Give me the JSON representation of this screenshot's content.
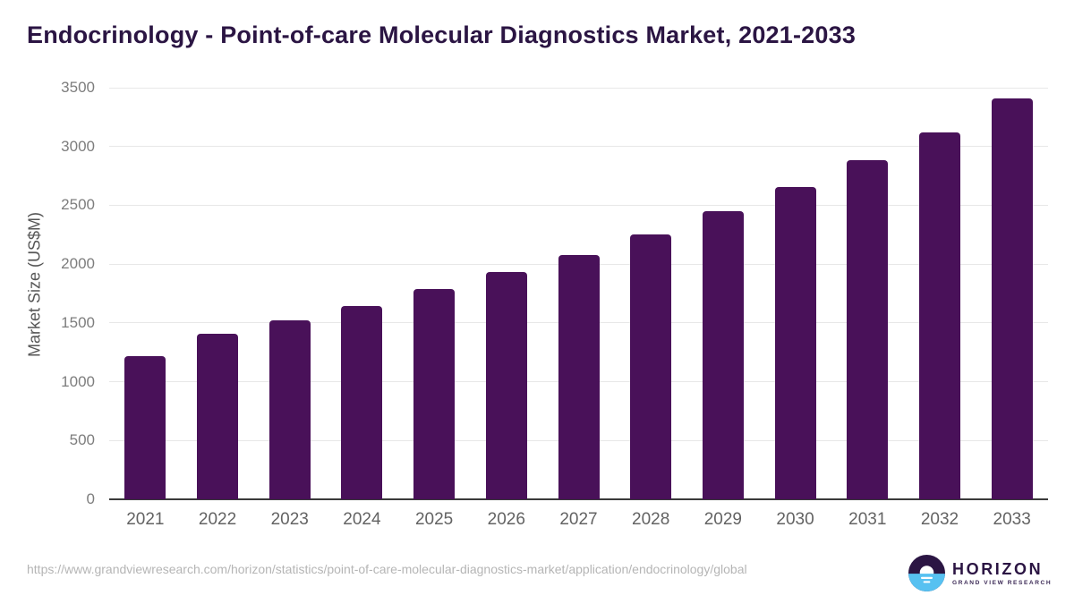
{
  "header": {
    "title": "Endocrinology - Point-of-care Molecular Diagnostics Market, 2021-2033"
  },
  "chart_data": {
    "type": "bar",
    "title": "Endocrinology - Point-of-care Molecular Diagnostics Market, 2021-2033",
    "categories": [
      "2021",
      "2022",
      "2023",
      "2024",
      "2025",
      "2026",
      "2027",
      "2028",
      "2029",
      "2030",
      "2031",
      "2032",
      "2033"
    ],
    "values": [
      1220,
      1405,
      1525,
      1645,
      1785,
      1930,
      2080,
      2255,
      2450,
      2655,
      2880,
      3120,
      3405
    ],
    "xlabel": "",
    "ylabel": "Market Size (US$M)",
    "ylim": [
      0,
      3500
    ],
    "ytick_step": 500,
    "grid": true,
    "legend_position": "none",
    "bar_color": "#491159"
  },
  "footer": {
    "source_url": "https://www.grandviewresearch.com/horizon/statistics/point-of-care-molecular-diagnostics-market/application/endocrinology/global",
    "logo": {
      "brand": "HORIZON",
      "subbrand": "GRAND VIEW RESEARCH"
    }
  },
  "colors": {
    "bar": "#491159",
    "title_text": "#2b1543",
    "gridline": "#e8e8e8",
    "axis_line": "#3a3a3a",
    "ytick_text": "#7d7d7d",
    "xtick_text": "#636363",
    "url_text": "#b5b5b5",
    "logo_purple": "#2b1543",
    "logo_blue": "#57c1f1"
  }
}
